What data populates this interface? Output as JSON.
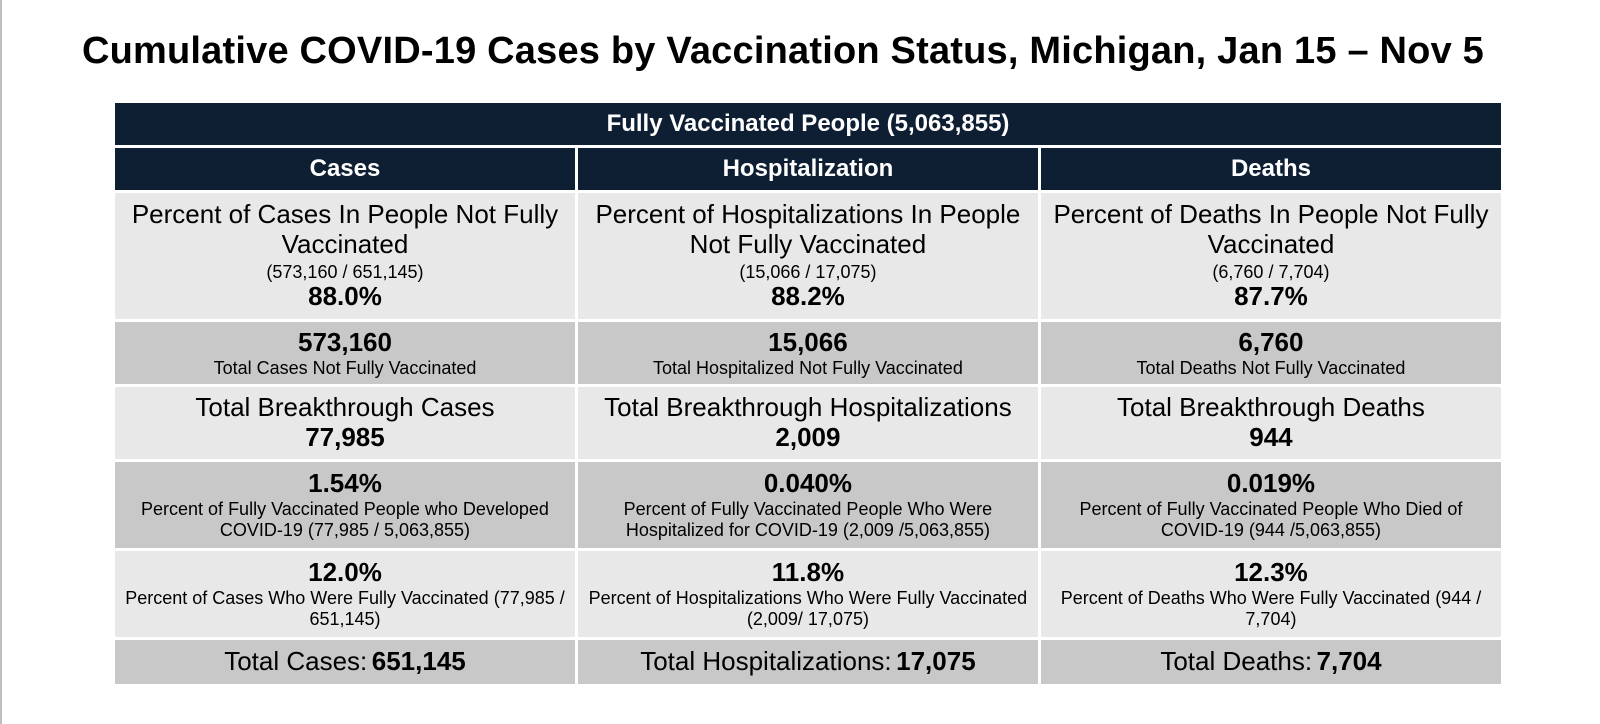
{
  "title": "Cumulative COVID-19 Cases by Vaccination Status, Michigan, Jan 15 – Nov 5",
  "banner": "Fully Vaccinated People (5,063,855)",
  "columns": [
    {
      "header": "Cases",
      "not_vax_pct_label": "Percent of Cases In People Not Fully Vaccinated",
      "not_vax_pct_fraction": "(573,160 / 651,145)",
      "not_vax_pct_value": "88.0%",
      "not_vax_total_value": "573,160",
      "not_vax_total_label": "Total Cases Not Fully Vaccinated",
      "breakthrough_label": "Total Breakthrough Cases",
      "breakthrough_value": "77,985",
      "pct_of_vax_value": "1.54%",
      "pct_of_vax_label": "Percent of Fully Vaccinated People who Developed COVID-19 (77,985 / 5,063,855)",
      "pct_vax_value": "12.0%",
      "pct_vax_label": "Percent of Cases Who Were Fully Vaccinated (77,985 / 651,145)",
      "total_label": "Total Cases:",
      "total_value": "651,145"
    },
    {
      "header": "Hospitalization",
      "not_vax_pct_label": "Percent of Hospitalizations In People Not Fully Vaccinated",
      "not_vax_pct_fraction": "(15,066 / 17,075)",
      "not_vax_pct_value": "88.2%",
      "not_vax_total_value": "15,066",
      "not_vax_total_label": "Total Hospitalized Not Fully Vaccinated",
      "breakthrough_label": "Total Breakthrough Hospitalizations",
      "breakthrough_value": "2,009",
      "pct_of_vax_value": "0.040%",
      "pct_of_vax_label": "Percent of Fully Vaccinated People Who Were Hospitalized for COVID-19 (2,009 /5,063,855)",
      "pct_vax_value": "11.8%",
      "pct_vax_label": "Percent of Hospitalizations Who Were Fully Vaccinated (2,009/ 17,075)",
      "total_label": "Total Hospitalizations:",
      "total_value": "17,075"
    },
    {
      "header": "Deaths",
      "not_vax_pct_label": "Percent of Deaths In People Not Fully Vaccinated",
      "not_vax_pct_fraction": "(6,760 / 7,704)",
      "not_vax_pct_value": "87.7%",
      "not_vax_total_value": "6,760",
      "not_vax_total_label": "Total Deaths Not Fully Vaccinated",
      "breakthrough_label": "Total Breakthrough Deaths",
      "breakthrough_value": "944",
      "pct_of_vax_value": "0.019%",
      "pct_of_vax_label": "Percent of Fully Vaccinated People Who Died of COVID-19 (944 /5,063,855)",
      "pct_vax_value": "12.3%",
      "pct_vax_label": "Percent of Deaths Who Were Fully Vaccinated (944 / 7,704)",
      "total_label": "Total Deaths:",
      "total_value": "7,704"
    }
  ],
  "colors": {
    "header_bg": "#0f1f33",
    "row_light": "#e8e8e8",
    "row_dark": "#c8c8c8"
  }
}
